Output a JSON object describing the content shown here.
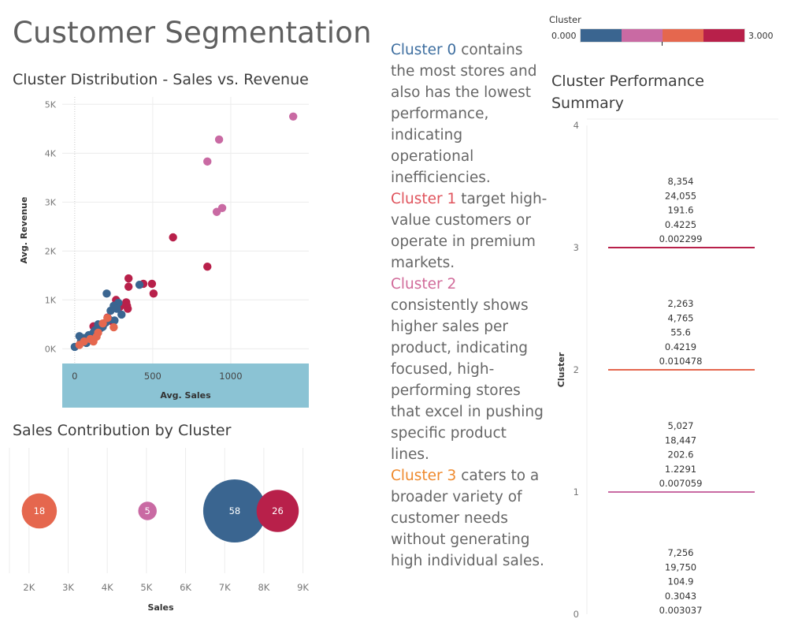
{
  "page": {
    "title": "Customer Segmentation"
  },
  "colors": {
    "cluster0": "#3a6590",
    "cluster1": "#c96aa3",
    "cluster2": "#e5674e",
    "cluster3": "#b8204a",
    "axis_band": "#8bc3d4"
  },
  "legend": {
    "title": "Cluster",
    "min_label": "0.000",
    "max_label": "3.000"
  },
  "narrative": [
    {
      "name": "Cluster 0",
      "color": "#3f6fa0",
      "text": " contains the most stores and also has the lowest performance, indicating operational inefficiencies."
    },
    {
      "name": "Cluster 1",
      "color": "#e0555e",
      "text": " target high-value customers or operate in premium markets."
    },
    {
      "name": "Cluster 2",
      "color": "#d16b9a",
      "text": " consistently shows higher sales per product, indicating focused, high-performing stores that excel in pushing specific product lines."
    },
    {
      "name": "Cluster 3",
      "color": "#ef8a2e",
      "text": " caters to a broader variety of customer needs without generating high individual sales."
    }
  ],
  "chart_data": [
    {
      "type": "scatter",
      "title": "Cluster Distribution - Sales vs. Revenue",
      "xlabel": "Avg. Sales",
      "ylabel": "Avg. Revenue",
      "xlim": [
        -80,
        1500
      ],
      "ylim": [
        -300,
        5150
      ],
      "x_ticks": [
        0,
        500,
        1000
      ],
      "x_tick_labels": [
        "0",
        "500",
        "1000"
      ],
      "y_ticks": [
        0,
        1000,
        2000,
        3000,
        4000,
        5000
      ],
      "y_tick_labels": [
        "0K",
        "1K",
        "2K",
        "3K",
        "4K",
        "5K"
      ],
      "grid": true,
      "series": [
        {
          "cluster": 1,
          "points": [
            [
              1400,
              4750
            ],
            [
              925,
              4280
            ],
            [
              850,
              3830
            ],
            [
              945,
              2880
            ],
            [
              910,
              2800
            ]
          ]
        },
        {
          "cluster": 3,
          "points": [
            [
              630,
              2280
            ],
            [
              850,
              1680
            ],
            [
              345,
              1440
            ],
            [
              440,
              1330
            ],
            [
              495,
              1330
            ],
            [
              345,
              1270
            ],
            [
              505,
              1130
            ],
            [
              265,
              1000
            ],
            [
              330,
              950
            ],
            [
              335,
              880
            ],
            [
              290,
              860
            ],
            [
              340,
              820
            ],
            [
              210,
              640
            ],
            [
              240,
              560
            ],
            [
              160,
              470
            ],
            [
              120,
              460
            ],
            [
              130,
              380
            ],
            [
              100,
              270
            ]
          ]
        },
        {
          "cluster": 0,
          "points": [
            [
              415,
              1310
            ],
            [
              205,
              1130
            ],
            [
              280,
              940
            ],
            [
              250,
              880
            ],
            [
              230,
              780
            ],
            [
              300,
              700
            ],
            [
              255,
              580
            ],
            [
              200,
              540
            ],
            [
              150,
              500
            ],
            [
              165,
              420
            ],
            [
              130,
              380
            ],
            [
              120,
              330
            ],
            [
              90,
              280
            ],
            [
              60,
              220
            ],
            [
              30,
              260
            ],
            [
              40,
              150
            ],
            [
              0,
              40
            ],
            [
              75,
              120
            ],
            [
              180,
              450
            ],
            [
              220,
              600
            ],
            [
              270,
              820
            ],
            [
              140,
              300
            ]
          ]
        },
        {
          "cluster": 2,
          "points": [
            [
              210,
              630
            ],
            [
              250,
              440
            ],
            [
              150,
              330
            ],
            [
              140,
              250
            ],
            [
              100,
              200
            ],
            [
              60,
              150
            ],
            [
              30,
              80
            ],
            [
              180,
              520
            ],
            [
              120,
              150
            ]
          ]
        }
      ]
    },
    {
      "type": "bubble",
      "title": "Sales Contribution by Cluster",
      "xlabel": "Sales",
      "xlim": [
        1500,
        9150
      ],
      "x_ticks": [
        2000,
        3000,
        4000,
        5000,
        6000,
        7000,
        8000,
        9000
      ],
      "x_tick_labels": [
        "2K",
        "3K",
        "4K",
        "5K",
        "6K",
        "7K",
        "8K",
        "9K"
      ],
      "points": [
        {
          "cluster": 2,
          "x": 2263,
          "count": 18
        },
        {
          "cluster": 1,
          "x": 5027,
          "count": 5
        },
        {
          "cluster": 0,
          "x": 7256,
          "count": 58
        },
        {
          "cluster": 3,
          "x": 8354,
          "count": 26
        }
      ]
    },
    {
      "type": "table",
      "title": "Cluster Performance Summary",
      "ylabel": "Cluster",
      "ylim": [
        0,
        4
      ],
      "y_ticks": [
        0,
        1,
        2,
        3,
        4
      ],
      "y_tick_labels": [
        "0",
        "1",
        "2",
        "3",
        "4"
      ],
      "rows": [
        {
          "cluster": 3,
          "values": [
            "8,354",
            "24,055",
            "191.6",
            "0.4225",
            "0.002299"
          ]
        },
        {
          "cluster": 2,
          "values": [
            "2,263",
            "4,765",
            "55.6",
            "0.4219",
            "0.010478"
          ]
        },
        {
          "cluster": 1,
          "values": [
            "5,027",
            "18,447",
            "202.6",
            "1.2291",
            "0.007059"
          ]
        },
        {
          "cluster": 0,
          "values": [
            "7,256",
            "19,750",
            "104.9",
            "0.3043",
            "0.003037"
          ]
        }
      ]
    }
  ]
}
